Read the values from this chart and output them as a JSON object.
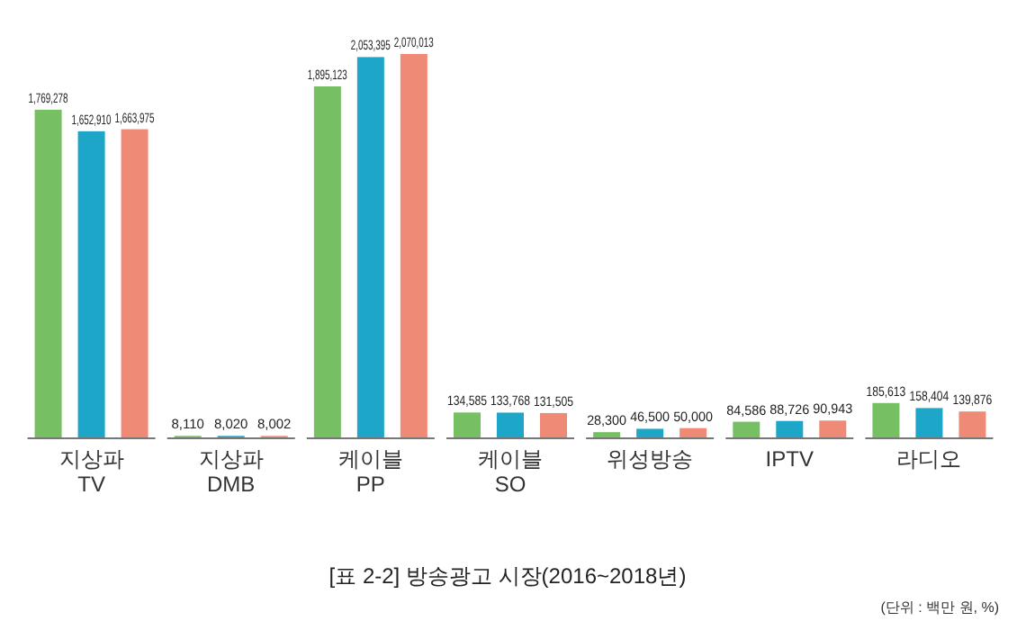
{
  "chart_data": {
    "type": "bar",
    "title": "[표 2-2] 방송광고 시장(2016~2018년)",
    "annotations": [
      "(단위 : 백만 원, %)"
    ],
    "categories": [
      "지상파\nTV",
      "지상파\nDMB",
      "케이블\nPP",
      "케이블\nSO",
      "위성방송",
      "IPTV",
      "라디오"
    ],
    "series": [
      {
        "color": "#77bf63",
        "values": [
          1769278,
          8110,
          1895123,
          134585,
          28300,
          84586,
          185613
        ],
        "value_labels": [
          "1,769,278",
          "8,110",
          "1,895,123",
          "134,585",
          "28,300",
          "84,586",
          "185,613"
        ]
      },
      {
        "color": "#1ea6c9",
        "values": [
          1652910,
          8020,
          2053395,
          133768,
          46500,
          88726,
          158404
        ],
        "value_labels": [
          "1,652,910",
          "8,020",
          "2,053,395",
          "133,768",
          "46,500",
          "88,726",
          "158,404"
        ]
      },
      {
        "color": "#ef8a76",
        "values": [
          1663975,
          8002,
          2070013,
          131505,
          50000,
          90943,
          139876
        ],
        "value_labels": [
          "1,663,975",
          "8,002",
          "2,070,013",
          "131,505",
          "50,000",
          "90,943",
          "139,876"
        ]
      }
    ]
  }
}
